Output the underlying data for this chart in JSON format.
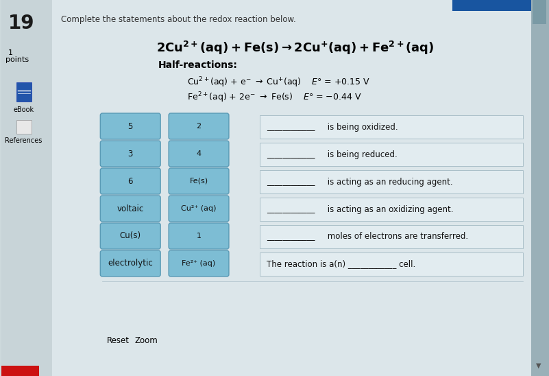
{
  "page_bg": "#cdd9dc",
  "content_bg": "#dce6ea",
  "question_number": "19",
  "instruction": "Complete the statements about the redox reaction below.",
  "button_color": "#7dbdd4",
  "button_border": "#5a9ab5",
  "buttons_col1": [
    "5",
    "3",
    "6",
    "voltaic",
    "Cu(s)",
    "electrolytic"
  ],
  "buttons_col2": [
    "2",
    "4",
    "Fe(s)",
    "Cu²⁺ (aq)",
    "1",
    "Fe²⁺ (aq)"
  ],
  "answer_texts": [
    " is being oxidized.",
    " is being reduced.",
    " is acting as an reducing agent.",
    " is acting as an oxidizing agent.",
    " moles of electrons are transferred.",
    "The reaction is a(n)                      cell."
  ],
  "answer_box_bg": "#e2ecf0",
  "answer_box_border": "#aabfc8",
  "top_right_color": "#1855a0",
  "sidebar_bg": "#c8d4d8",
  "bottom_red": "#cc1111",
  "scrollbar_color": "#9ab0b8"
}
